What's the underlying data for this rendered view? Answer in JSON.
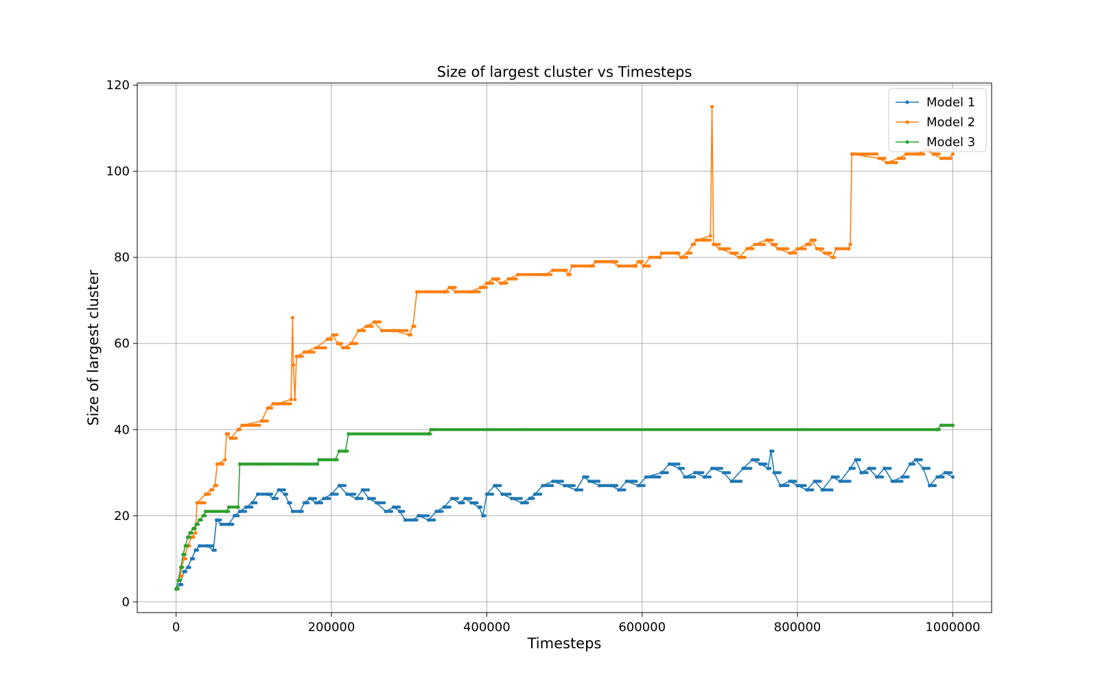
{
  "chart_data": {
    "type": "line",
    "title": "Size of largest cluster vs Timesteps",
    "xlabel": "Timesteps",
    "ylabel": "Size of largest cluster",
    "xlim": [
      -50000,
      1050000
    ],
    "ylim": [
      -2.5,
      120.5
    ],
    "xticks": [
      0,
      200000,
      400000,
      600000,
      800000,
      1000000
    ],
    "xtick_labels": [
      "0",
      "200000",
      "400000",
      "600000",
      "800000",
      "1000000"
    ],
    "yticks": [
      0,
      20,
      40,
      60,
      80,
      100,
      120
    ],
    "ytick_labels": [
      "0",
      "20",
      "40",
      "60",
      "80",
      "100",
      "120"
    ],
    "grid": true,
    "legend_position": "top-right",
    "markers": true,
    "series": [
      {
        "name": "Model 1",
        "color": "#1f77b4",
        "points": [
          [
            0,
            3
          ],
          [
            5000,
            4
          ],
          [
            10000,
            7
          ],
          [
            15000,
            8
          ],
          [
            20000,
            10
          ],
          [
            25000,
            12
          ],
          [
            30000,
            13
          ],
          [
            40000,
            13
          ],
          [
            48000,
            12
          ],
          [
            52000,
            19
          ],
          [
            58000,
            18
          ],
          [
            68000,
            18
          ],
          [
            75000,
            20
          ],
          [
            82000,
            21
          ],
          [
            90000,
            22
          ],
          [
            98000,
            23
          ],
          [
            105000,
            25
          ],
          [
            118000,
            25
          ],
          [
            125000,
            24
          ],
          [
            132000,
            26
          ],
          [
            140000,
            25
          ],
          [
            145000,
            23
          ],
          [
            150000,
            21
          ],
          [
            160000,
            21
          ],
          [
            165000,
            23
          ],
          [
            172000,
            24
          ],
          [
            180000,
            23
          ],
          [
            190000,
            24
          ],
          [
            200000,
            25
          ],
          [
            210000,
            27
          ],
          [
            220000,
            25
          ],
          [
            232000,
            24
          ],
          [
            240000,
            26
          ],
          [
            248000,
            24
          ],
          [
            258000,
            23
          ],
          [
            270000,
            21
          ],
          [
            280000,
            22
          ],
          [
            288000,
            21
          ],
          [
            295000,
            19
          ],
          [
            305000,
            19
          ],
          [
            312000,
            20
          ],
          [
            325000,
            19
          ],
          [
            335000,
            21
          ],
          [
            345000,
            22
          ],
          [
            355000,
            24
          ],
          [
            365000,
            23
          ],
          [
            372000,
            24
          ],
          [
            380000,
            23
          ],
          [
            390000,
            22
          ],
          [
            395000,
            20
          ],
          [
            400000,
            25
          ],
          [
            410000,
            27
          ],
          [
            420000,
            25
          ],
          [
            432000,
            24
          ],
          [
            445000,
            23
          ],
          [
            455000,
            24
          ],
          [
            462000,
            25
          ],
          [
            472000,
            27
          ],
          [
            485000,
            28
          ],
          [
            500000,
            27
          ],
          [
            515000,
            26
          ],
          [
            525000,
            29
          ],
          [
            532000,
            28
          ],
          [
            545000,
            27
          ],
          [
            560000,
            27
          ],
          [
            570000,
            26
          ],
          [
            580000,
            28
          ],
          [
            595000,
            27
          ],
          [
            605000,
            29
          ],
          [
            625000,
            30
          ],
          [
            635000,
            32
          ],
          [
            648000,
            31
          ],
          [
            655000,
            29
          ],
          [
            668000,
            30
          ],
          [
            680000,
            29
          ],
          [
            690000,
            31
          ],
          [
            705000,
            30
          ],
          [
            715000,
            28
          ],
          [
            730000,
            31
          ],
          [
            742000,
            33
          ],
          [
            752000,
            32
          ],
          [
            762000,
            31
          ],
          [
            766000,
            35
          ],
          [
            770000,
            30
          ],
          [
            778000,
            27
          ],
          [
            790000,
            28
          ],
          [
            800000,
            27
          ],
          [
            812000,
            26
          ],
          [
            822000,
            28
          ],
          [
            832000,
            26
          ],
          [
            845000,
            29
          ],
          [
            855000,
            28
          ],
          [
            868000,
            31
          ],
          [
            875000,
            33
          ],
          [
            882000,
            30
          ],
          [
            892000,
            31
          ],
          [
            902000,
            29
          ],
          [
            912000,
            31
          ],
          [
            922000,
            28
          ],
          [
            935000,
            29
          ],
          [
            945000,
            32
          ],
          [
            952000,
            33
          ],
          [
            962000,
            31
          ],
          [
            970000,
            27
          ],
          [
            980000,
            29
          ],
          [
            990000,
            30
          ],
          [
            1000000,
            29
          ]
        ]
      },
      {
        "name": "Model 2",
        "color": "#ff7f0e",
        "points": [
          [
            0,
            3
          ],
          [
            5000,
            6
          ],
          [
            10000,
            10
          ],
          [
            15000,
            13
          ],
          [
            20000,
            15
          ],
          [
            25000,
            16
          ],
          [
            27000,
            23
          ],
          [
            38000,
            25
          ],
          [
            45000,
            26
          ],
          [
            50000,
            27
          ],
          [
            53000,
            32
          ],
          [
            63000,
            33
          ],
          [
            65000,
            39
          ],
          [
            70000,
            38
          ],
          [
            80000,
            40
          ],
          [
            85000,
            41
          ],
          [
            110000,
            42
          ],
          [
            118000,
            45
          ],
          [
            125000,
            46
          ],
          [
            130000,
            46
          ],
          [
            148000,
            47
          ],
          [
            150000,
            66
          ],
          [
            151000,
            55
          ],
          [
            153000,
            47
          ],
          [
            155000,
            57
          ],
          [
            165000,
            58
          ],
          [
            180000,
            59
          ],
          [
            195000,
            61
          ],
          [
            202000,
            62
          ],
          [
            208000,
            60
          ],
          [
            215000,
            59
          ],
          [
            225000,
            60
          ],
          [
            235000,
            63
          ],
          [
            245000,
            64
          ],
          [
            255000,
            65
          ],
          [
            265000,
            63
          ],
          [
            280000,
            63
          ],
          [
            300000,
            62
          ],
          [
            305000,
            64
          ],
          [
            310000,
            72
          ],
          [
            345000,
            72
          ],
          [
            352000,
            73
          ],
          [
            360000,
            72
          ],
          [
            378000,
            72
          ],
          [
            392000,
            73
          ],
          [
            400000,
            74
          ],
          [
            408000,
            75
          ],
          [
            418000,
            74
          ],
          [
            428000,
            75
          ],
          [
            440000,
            76
          ],
          [
            475000,
            76
          ],
          [
            485000,
            77
          ],
          [
            500000,
            77
          ],
          [
            505000,
            76
          ],
          [
            510000,
            78
          ],
          [
            535000,
            78
          ],
          [
            540000,
            79
          ],
          [
            560000,
            79
          ],
          [
            570000,
            78
          ],
          [
            590000,
            78
          ],
          [
            595000,
            79
          ],
          [
            602000,
            78
          ],
          [
            610000,
            80
          ],
          [
            623000,
            80
          ],
          [
            625000,
            81
          ],
          [
            645000,
            81
          ],
          [
            650000,
            80
          ],
          [
            658000,
            81
          ],
          [
            665000,
            83
          ],
          [
            670000,
            84
          ],
          [
            688000,
            85
          ],
          [
            690000,
            115
          ],
          [
            692000,
            83
          ],
          [
            700000,
            82
          ],
          [
            715000,
            81
          ],
          [
            725000,
            80
          ],
          [
            735000,
            82
          ],
          [
            745000,
            83
          ],
          [
            760000,
            84
          ],
          [
            768000,
            83
          ],
          [
            775000,
            82
          ],
          [
            790000,
            81
          ],
          [
            800000,
            82
          ],
          [
            812000,
            83
          ],
          [
            818000,
            84
          ],
          [
            825000,
            82
          ],
          [
            835000,
            81
          ],
          [
            845000,
            80
          ],
          [
            850000,
            82
          ],
          [
            866000,
            82
          ],
          [
            868000,
            83
          ],
          [
            870000,
            104
          ],
          [
            905000,
            103
          ],
          [
            915000,
            102
          ],
          [
            930000,
            103
          ],
          [
            940000,
            104
          ],
          [
            955000,
            104
          ],
          [
            965000,
            105
          ],
          [
            975000,
            104
          ],
          [
            985000,
            103
          ],
          [
            995000,
            103
          ],
          [
            1000000,
            104
          ]
        ]
      },
      {
        "name": "Model 3",
        "color": "#2ca02c",
        "points": [
          [
            0,
            3
          ],
          [
            3000,
            5
          ],
          [
            6000,
            8
          ],
          [
            9000,
            11
          ],
          [
            12000,
            13
          ],
          [
            15000,
            15
          ],
          [
            18000,
            16
          ],
          [
            22000,
            17
          ],
          [
            26000,
            18
          ],
          [
            30000,
            19
          ],
          [
            35000,
            20
          ],
          [
            38000,
            21
          ],
          [
            65000,
            21
          ],
          [
            68000,
            22
          ],
          [
            80000,
            22
          ],
          [
            82000,
            32
          ],
          [
            182000,
            32
          ],
          [
            184000,
            33
          ],
          [
            205000,
            33
          ],
          [
            210000,
            35
          ],
          [
            218000,
            35
          ],
          [
            222000,
            39
          ],
          [
            325000,
            39
          ],
          [
            328000,
            40
          ],
          [
            980000,
            40
          ],
          [
            985000,
            41
          ],
          [
            1000000,
            41
          ]
        ]
      }
    ]
  }
}
